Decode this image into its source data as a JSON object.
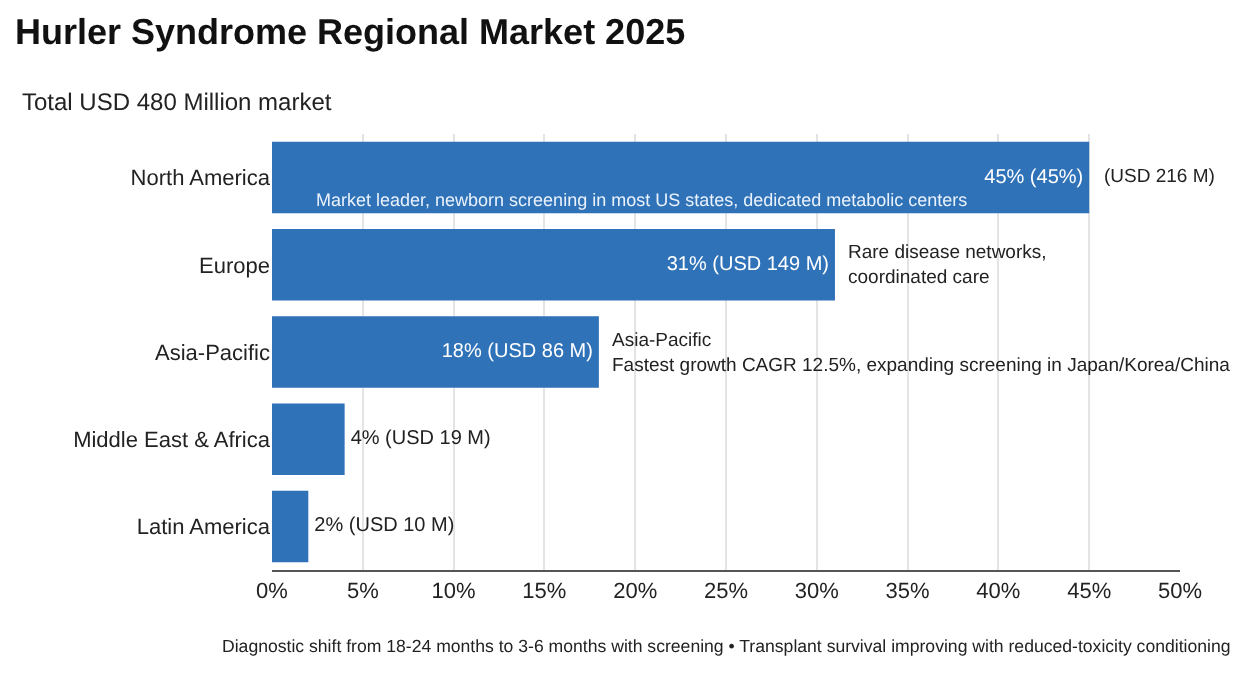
{
  "chart_data": {
    "type": "bar",
    "orientation": "horizontal",
    "title": "Hurler Syndrome Regional Market 2025",
    "subtitle": "Total USD 480 Million market",
    "categories": [
      "North America",
      "Europe",
      "Asia-Pacific",
      "Middle East & Africa",
      "Latin America"
    ],
    "values": [
      45,
      31,
      18,
      4,
      2
    ],
    "color": "#2f72b8",
    "value_labels": [
      "45% (45%)",
      "31% (USD 149 M)",
      "18% (USD 86 M)",
      "4% (USD 19 M)",
      "2% (USD 10 M)"
    ],
    "xlim": [
      0,
      50
    ],
    "xticks": [
      {
        "value": 0,
        "label": "0%"
      },
      {
        "value": 5,
        "label": "5%"
      },
      {
        "value": 10,
        "label": "10%"
      },
      {
        "value": 15,
        "label": "15%"
      },
      {
        "value": 20,
        "label": "20%"
      },
      {
        "value": 25,
        "label": "25%"
      },
      {
        "value": 30,
        "label": "30%"
      },
      {
        "value": 35,
        "label": "35%"
      },
      {
        "value": 40,
        "label": "40%"
      },
      {
        "value": 45,
        "label": "45%"
      },
      {
        "value": 50,
        "label": "50%"
      }
    ],
    "grid": "x",
    "annotations": [
      {
        "text": "(USD 216 M)",
        "x": 45,
        "y": "North America"
      },
      {
        "text": "Market leader, newborn screening in most US states, dedicated metabolic centers",
        "x": 2,
        "y": "North America"
      },
      {
        "text": "Rare disease networks,\ncoordinated care",
        "x": 31,
        "y": "Europe"
      },
      {
        "text": "Asia-Pacific\nFastest growth CAGR 12.5%, expanding screening in Japan/Korea/China",
        "x": 18,
        "y": "Asia-Pacific"
      },
      "Diagnostic shift from 18-24 months to 3-6 months with screening • Transplant survival improving with reduced-toxicity conditioning"
    ]
  }
}
